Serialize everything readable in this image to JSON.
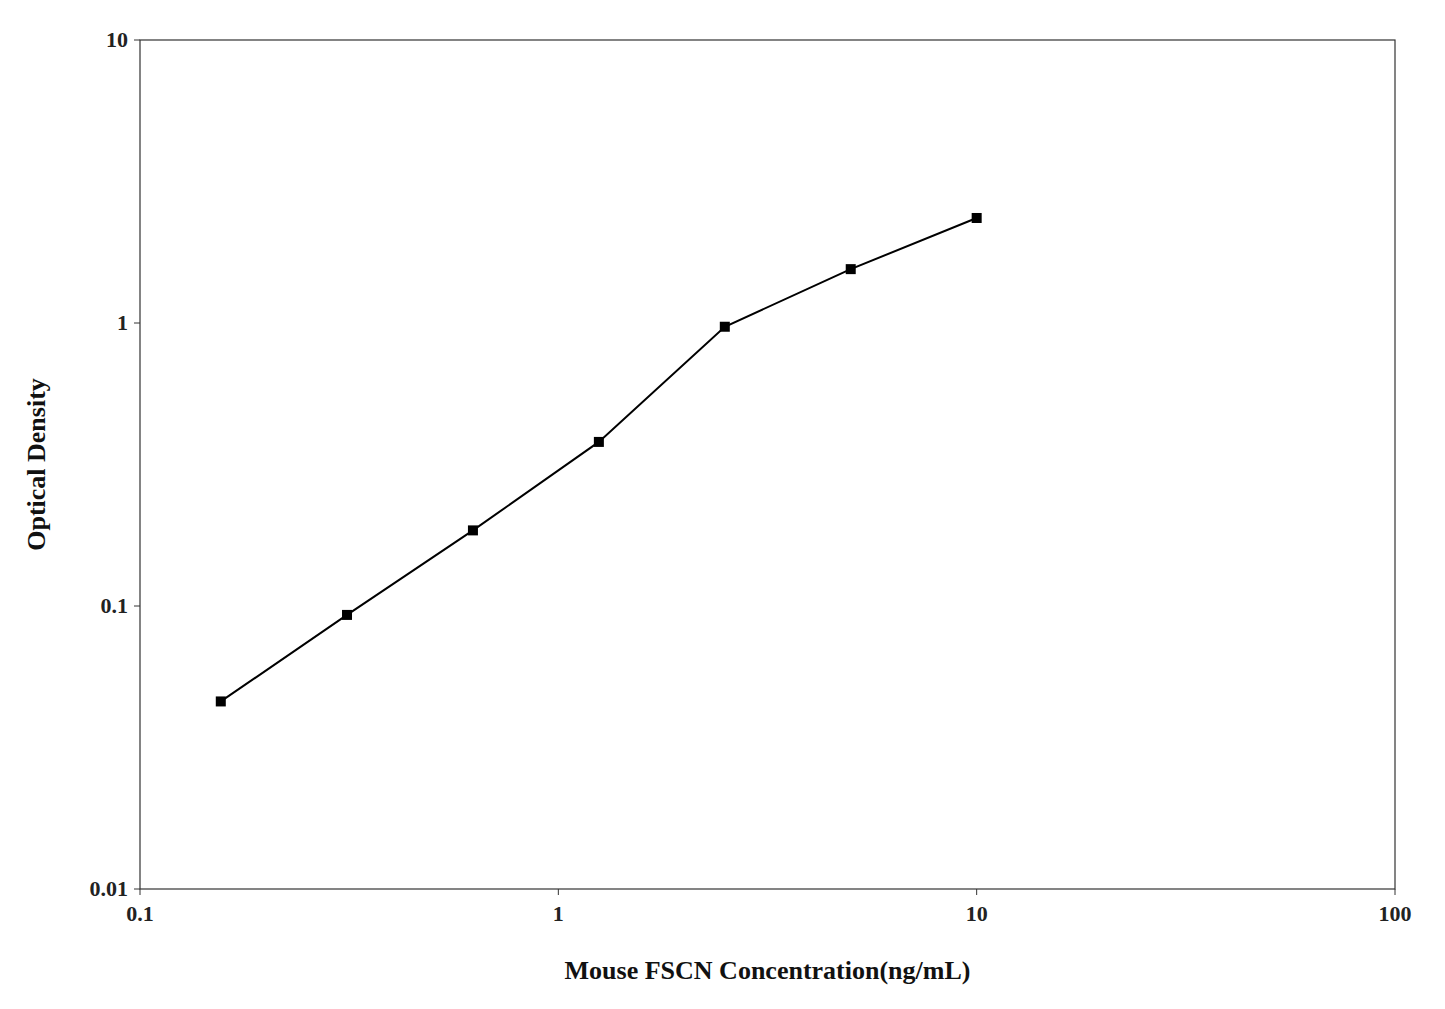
{
  "chart_data": {
    "type": "line",
    "xlabel": "Mouse FSCN Concentration(ng/mL)",
    "ylabel": "Optical Density",
    "x": [
      0.156,
      0.3125,
      0.625,
      1.25,
      2.5,
      5.0,
      10.0
    ],
    "values": [
      0.046,
      0.093,
      0.185,
      0.38,
      0.97,
      1.55,
      2.35
    ],
    "color": "#000000",
    "marker": "square",
    "log": true,
    "grid": false,
    "xlim": [
      0.1,
      100
    ],
    "ylim": [
      0.01,
      10
    ],
    "xticks": [
      0.1,
      1,
      10,
      100
    ],
    "yticks": [
      0.01,
      0.1,
      1,
      10
    ]
  }
}
